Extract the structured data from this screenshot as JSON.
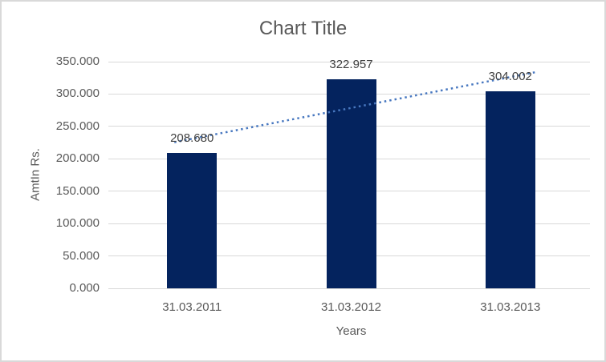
{
  "window": {
    "background_color": "#FFFFFF",
    "border_color": "#D9D9D9"
  },
  "chart_data": {
    "type": "bar",
    "title": "Chart Title",
    "xlabel": "Years",
    "ylabel": "AmtIn Rs.",
    "categories": [
      "31.03.2011",
      "31.03.2012",
      "31.03.2013"
    ],
    "values": [
      208.68,
      322.957,
      304.002
    ],
    "value_labels": [
      "208.680",
      "322.957",
      "304.002"
    ],
    "ylim": [
      0,
      350
    ],
    "ytick_step": 50,
    "ytick_labels": [
      "0.000",
      "50.000",
      "100.000",
      "150.000",
      "200.000",
      "250.000",
      "300.000",
      "350.000"
    ],
    "grid": true,
    "legend": "none",
    "bar_color": "#04235E",
    "trendline": {
      "type": "linear",
      "style": "dotted",
      "color": "#4878C0"
    },
    "title_color": "#595959",
    "axis_text_color": "#595959",
    "data_label_color": "#404040",
    "gridline_color": "#D9D9D9"
  }
}
